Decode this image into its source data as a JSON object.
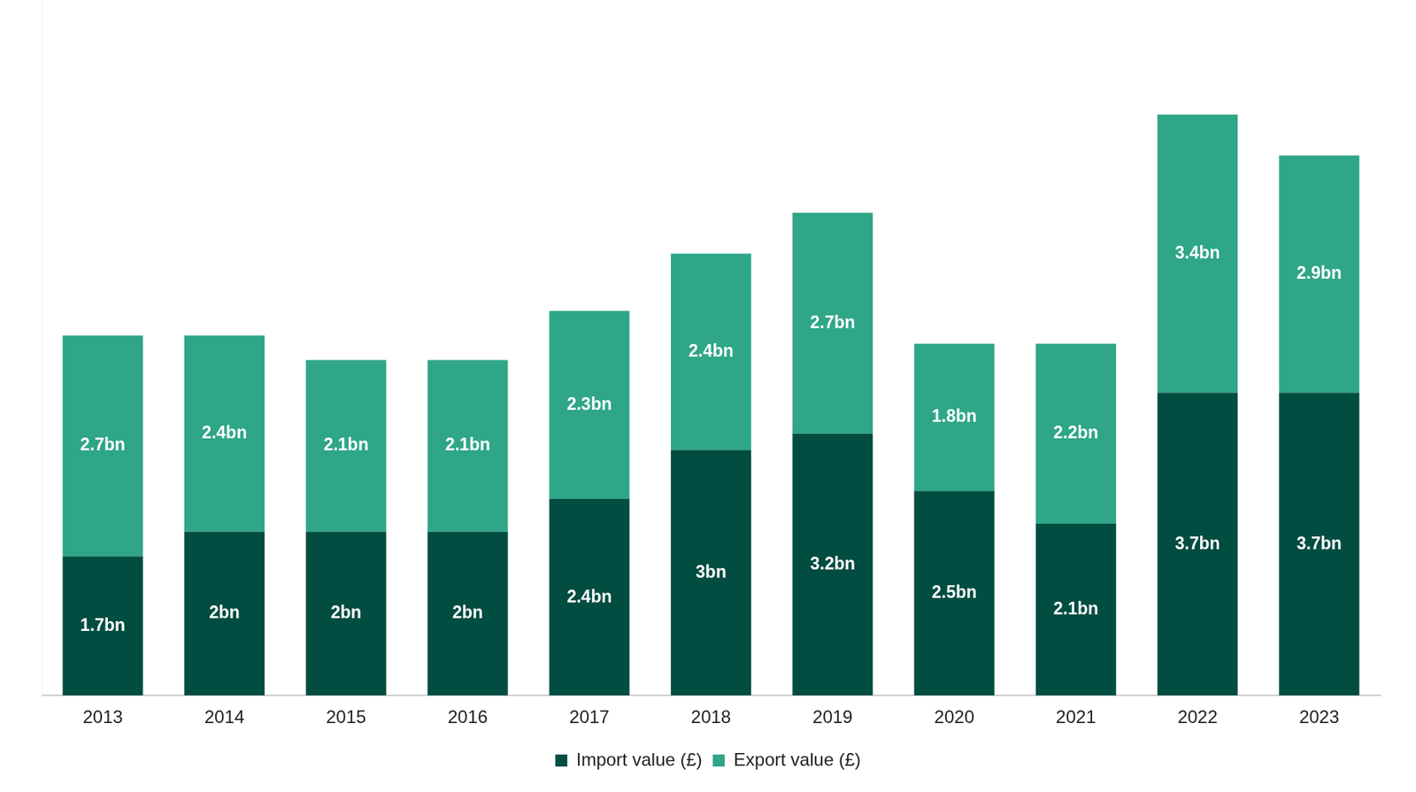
{
  "chart_data": {
    "type": "bar",
    "categories": [
      "2013",
      "2014",
      "2015",
      "2016",
      "2017",
      "2018",
      "2019",
      "2020",
      "2021",
      "2022",
      "2023"
    ],
    "series": [
      {
        "name": "Import value (£)",
        "color": "#024d41",
        "values": [
          1.7,
          2,
          2,
          2,
          2.4,
          3,
          3.2,
          2.5,
          2.1,
          3.7,
          3.7
        ],
        "value_labels": [
          "1.7bn",
          "2bn",
          "2bn",
          "2bn",
          "2.4bn",
          "3bn",
          "3.2bn",
          "2.5bn",
          "2.1bn",
          "3.7bn",
          "3.7bn"
        ]
      },
      {
        "name": "Export value (£)",
        "color": "#2ea687",
        "values": [
          2.7,
          2.4,
          2.1,
          2.1,
          2.3,
          2.4,
          2.7,
          1.8,
          2.2,
          3.4,
          2.9
        ],
        "value_labels": [
          "2.7bn",
          "2.4bn",
          "2.1bn",
          "2.1bn",
          "2.3bn",
          "2.4bn",
          "2.7bn",
          "1.8bn",
          "2.2bn",
          "3.4bn",
          "2.9bn"
        ]
      }
    ],
    "ylim": [
      0,
      8.5
    ],
    "stacked": true,
    "data_labels": true,
    "grid": false,
    "legend": "bottom",
    "tick_labels": "x"
  }
}
